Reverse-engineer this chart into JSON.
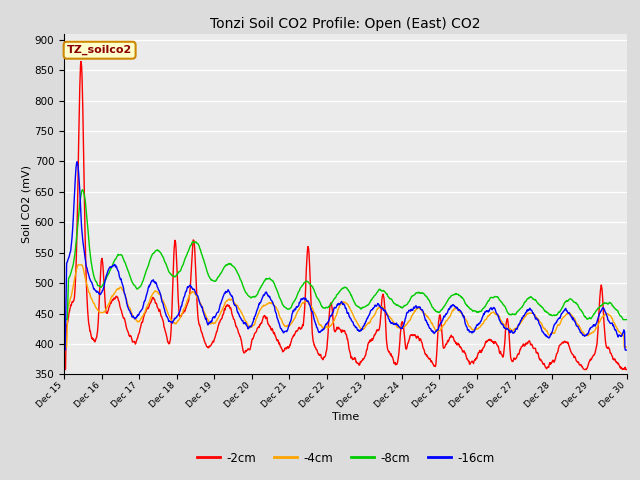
{
  "title": "Tonzi Soil CO2 Profile: Open (East) CO2",
  "xlabel": "Time",
  "ylabel": "Soil CO2 (mV)",
  "ylim": [
    350,
    910
  ],
  "yticks": [
    350,
    400,
    450,
    500,
    550,
    600,
    650,
    700,
    750,
    800,
    850,
    900
  ],
  "series_labels": [
    "-2cm",
    "-4cm",
    "-8cm",
    "-16cm"
  ],
  "series_colors": [
    "#ff0000",
    "#ffa500",
    "#00cc00",
    "#0000ff"
  ],
  "line_width": 1.0,
  "bg_color": "#dcdcdc",
  "plot_bg_color": "#ebebeb",
  "annotation_text": "TZ_soilco2",
  "annotation_color": "#8b0000",
  "annotation_bg": "#ffffcc",
  "n_points": 1500,
  "x_start": 15.0,
  "x_end": 30.0,
  "xtick_labels": [
    "Dec 15",
    "Dec 16",
    "Dec 17",
    "Dec 18",
    "Dec 19",
    "Dec 20",
    "Dec 21",
    "Dec 22",
    "Dec 23",
    "Dec 24",
    "Dec 25",
    "Dec 26",
    "Dec 27",
    "Dec 28",
    "Dec 29",
    "Dec 30"
  ],
  "xtick_positions": [
    15,
    16,
    17,
    18,
    19,
    20,
    21,
    22,
    23,
    24,
    25,
    26,
    27,
    28,
    29,
    30
  ]
}
